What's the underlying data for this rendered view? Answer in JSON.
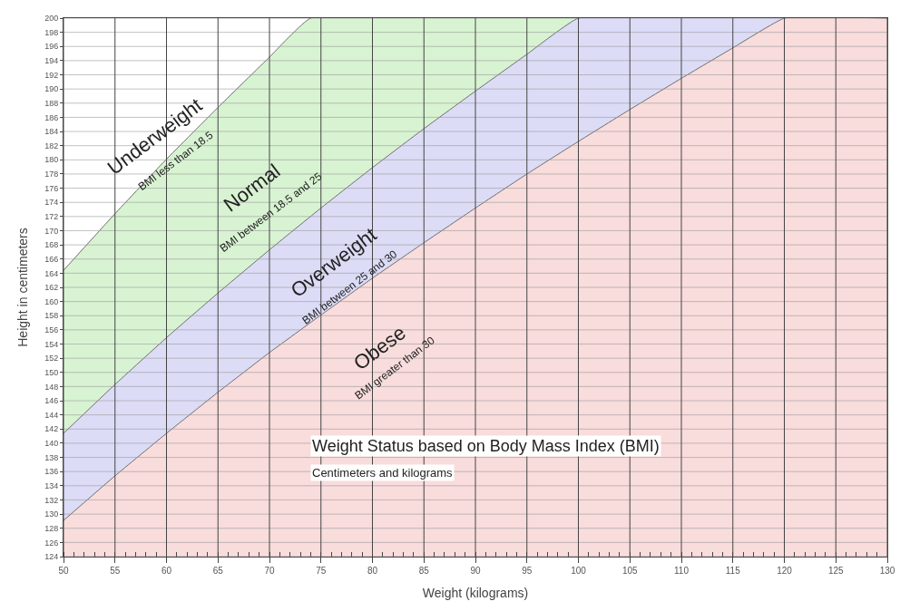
{
  "chart_data": {
    "type": "area",
    "title": "Weight Status based on Body Mass Index (BMI)",
    "subtitle": "Centimeters and kilograms",
    "xlabel": "Weight (kilograms)",
    "ylabel": "Height in centimeters",
    "series": [
      {
        "color": "#d8f3d2",
        "x": [
          50,
          55,
          60,
          65,
          70,
          74,
          130
        ],
        "values": [
          164.4,
          172.4,
          180.1,
          187.4,
          194.5,
          200,
          200
        ]
      },
      {
        "color": "#dcdcf7",
        "x": [
          50,
          55,
          60,
          65,
          70,
          75,
          80,
          85,
          90,
          95,
          100,
          130
        ],
        "values": [
          141.4,
          148.3,
          154.9,
          161.2,
          167.3,
          173.2,
          178.9,
          184.4,
          189.7,
          194.9,
          200,
          200
        ]
      },
      {
        "color": "#f9dcdc",
        "x": [
          50,
          55,
          60,
          65,
          70,
          75,
          80,
          85,
          90,
          95,
          100,
          105,
          110,
          115,
          120,
          130
        ],
        "values": [
          129.1,
          135.4,
          141.4,
          147.2,
          152.8,
          158.1,
          163.3,
          168.3,
          173.2,
          178.0,
          182.6,
          187.1,
          191.5,
          195.8,
          200,
          200
        ]
      }
    ],
    "annotations": [
      "Underweight",
      "BMI less than 18.5",
      "Normal",
      "BMI between 18.5 and 25",
      "Overweight",
      "BMI between 25 and 30",
      "Obese",
      "BMI greater than 30"
    ],
    "xlim": [
      50,
      130
    ],
    "xticks": [
      50,
      55,
      60,
      65,
      70,
      75,
      80,
      85,
      90,
      95,
      100,
      105,
      110,
      115,
      120,
      125,
      130
    ],
    "ylim": [
      124,
      200
    ],
    "yticks": [
      124,
      126,
      128,
      130,
      132,
      134,
      136,
      138,
      140,
      142,
      144,
      146,
      148,
      150,
      152,
      154,
      156,
      158,
      160,
      162,
      164,
      166,
      168,
      170,
      172,
      174,
      176,
      178,
      180,
      182,
      184,
      186,
      188,
      190,
      192,
      194,
      196,
      198,
      200
    ],
    "grid": true
  }
}
